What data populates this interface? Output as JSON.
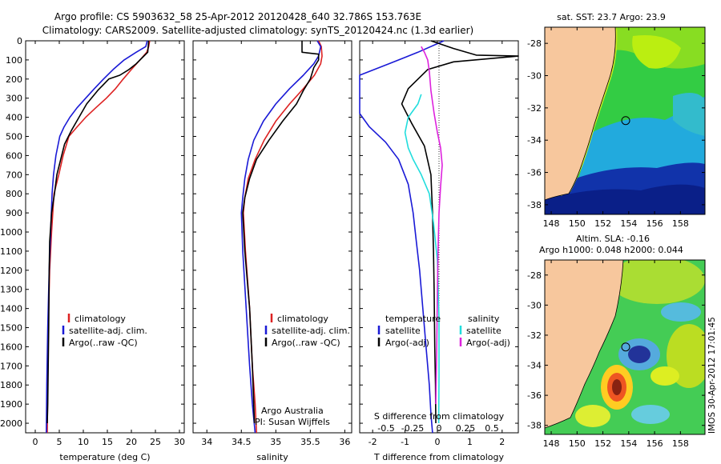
{
  "header": {
    "line1": "Argo profile: CS 5903632_58 25-Apr-2012 20120428_640 32.786S 153.763E",
    "line2": "Climatology: CARS2009. Satellite-adjusted climatology: synTS_20120424.nc (1.3d earlier)"
  },
  "colors": {
    "climatology": "#dd2222",
    "satellite": "#1a1ad6",
    "argo": "#000000",
    "satellite_salinity": "#22dddd",
    "argo_salinity": "#dd22dd",
    "land": "#f7c79d"
  },
  "chart_data": [
    {
      "type": "line",
      "panel": "temperature",
      "xlabel": "temperature (deg C)",
      "ylabel": "",
      "xlim": [
        -2,
        31
      ],
      "ylim": [
        2050,
        0
      ],
      "xticks": [
        "0",
        "5",
        "10",
        "15",
        "20",
        "25",
        "30"
      ],
      "yticks": [
        "0",
        "100",
        "200",
        "300",
        "400",
        "500",
        "600",
        "700",
        "800",
        "900",
        "1000",
        "1100",
        "1200",
        "1300",
        "1400",
        "1500",
        "1600",
        "1700",
        "1800",
        "1900",
        "2000"
      ],
      "legend": {
        "position": "middle",
        "entries": [
          "climatology",
          "satellite-adj. clim.",
          "Argo(..raw -QC)"
        ]
      },
      "series": [
        {
          "name": "climatology",
          "color": "#dd2222",
          "x": [
            23.8,
            23.6,
            23.2,
            21.8,
            20.0,
            18.3,
            16.7,
            14.8,
            12.6,
            10.5,
            8.7,
            7.0,
            5.8,
            4.9,
            3.9,
            3.4,
            3.0,
            2.7,
            2.6,
            2.5
          ],
          "y": [
            0,
            30,
            60,
            100,
            150,
            200,
            250,
            300,
            350,
            400,
            450,
            500,
            600,
            700,
            800,
            1000,
            1200,
            1500,
            1800,
            2050
          ]
        },
        {
          "name": "satellite-adj. clim.",
          "color": "#1a1ad6",
          "x": [
            23.3,
            23.0,
            21.0,
            18.5,
            16.2,
            14.2,
            12.3,
            10.5,
            8.7,
            7.2,
            6.0,
            5.1,
            4.3,
            3.8,
            3.5,
            3.2,
            2.9,
            2.6,
            2.4,
            2.3
          ],
          "y": [
            0,
            30,
            60,
            100,
            150,
            200,
            250,
            300,
            350,
            400,
            450,
            500,
            600,
            700,
            800,
            1000,
            1200,
            1500,
            1800,
            2050
          ]
        },
        {
          "name": "Argo(..raw -QC)",
          "color": "#000000",
          "x": [
            23.6,
            23.5,
            23.4,
            22.2,
            21.0,
            19.5,
            17.6,
            15.3,
            13.0,
            10.7,
            9.1,
            7.5,
            6.1,
            5.3,
            4.5,
            4.0,
            3.4,
            3.0,
            2.9,
            2.8,
            2.7,
            2.6,
            2.5
          ],
          "y": [
            0,
            30,
            60,
            90,
            120,
            150,
            180,
            200,
            260,
            330,
            400,
            470,
            540,
            620,
            700,
            800,
            900,
            1050,
            1200,
            1500,
            1700,
            1900,
            2000
          ]
        }
      ]
    },
    {
      "type": "line",
      "panel": "salinity",
      "xlabel": "salinity",
      "xlim": [
        33.8,
        36.1
      ],
      "ylim": [
        2050,
        0
      ],
      "xticks": [
        "34",
        "34.5",
        "35",
        "35.5",
        "36"
      ],
      "legend": {
        "position": "middle",
        "entries": [
          "climatology",
          "satellite-adj. clim.",
          "Argo(..raw -QC)"
        ]
      },
      "annotation": [
        "Argo Australia",
        "PI: Susan Wijffels"
      ],
      "series": [
        {
          "name": "climatology",
          "color": "#dd2222",
          "x": [
            35.62,
            35.66,
            35.67,
            35.65,
            35.56,
            35.4,
            35.2,
            35.0,
            34.83,
            34.7,
            34.6,
            34.55,
            34.53,
            34.56,
            34.62,
            34.66,
            34.7,
            34.72
          ],
          "y": [
            0,
            30,
            80,
            120,
            180,
            250,
            330,
            420,
            520,
            620,
            720,
            820,
            900,
            1100,
            1400,
            1700,
            1900,
            2050
          ]
        },
        {
          "name": "satellite-adj. clim.",
          "color": "#1a1ad6",
          "x": [
            35.6,
            35.65,
            35.62,
            35.55,
            35.4,
            35.2,
            35.0,
            34.82,
            34.68,
            34.6,
            34.55,
            34.52,
            34.5,
            34.52,
            34.57,
            34.62,
            34.66,
            34.7
          ],
          "y": [
            0,
            30,
            80,
            120,
            180,
            250,
            330,
            420,
            520,
            620,
            720,
            820,
            900,
            1100,
            1400,
            1700,
            1900,
            2050
          ]
        },
        {
          "name": "Argo(..raw -QC)",
          "color": "#000000",
          "x": [
            35.38,
            35.38,
            35.62,
            35.62,
            35.55,
            35.5,
            35.4,
            35.3,
            35.1,
            34.9,
            34.72,
            34.62,
            34.55,
            34.52,
            34.55,
            34.62,
            34.66,
            34.69
          ],
          "y": [
            0,
            60,
            70,
            100,
            140,
            200,
            260,
            330,
            420,
            520,
            620,
            720,
            820,
            900,
            1100,
            1400,
            1700,
            2000
          ]
        }
      ]
    },
    {
      "type": "line",
      "panel": "difference",
      "xlabel": "T difference from climatology",
      "top_axis_label": "S difference from climatology",
      "xlim": [
        -2.4,
        2.5
      ],
      "ylim": [
        2050,
        0
      ],
      "xticks": [
        "-2",
        "-1",
        "0",
        "1",
        "2"
      ],
      "s_ticks": [
        "-0.5",
        "-0.25",
        "0",
        "0.25",
        "0.5"
      ],
      "legend": {
        "position": "middle",
        "groups": [
          "temperature",
          "salinity"
        ],
        "entries": [
          "satellite",
          "Argo(-adj)",
          "satellite",
          "Argo(-adj)"
        ]
      },
      "series": [
        {
          "name": "satellite",
          "group": "temperature",
          "color": "#1a1ad6",
          "x": [
            0.2,
            -0.6,
            -1.5,
            -2.4,
            -2.4,
            -2.1,
            -1.6,
            -1.2,
            -0.9,
            -0.75,
            -0.65,
            -0.55,
            -0.45,
            -0.35,
            -0.25,
            -0.2,
            -0.15
          ],
          "y": [
            0,
            60,
            120,
            180,
            380,
            450,
            530,
            620,
            750,
            900,
            1050,
            1200,
            1400,
            1600,
            1800,
            1950,
            2050
          ]
        },
        {
          "name": "Argo(-adj)",
          "group": "temperature",
          "color": "#000000",
          "x": [
            -0.2,
            0.5,
            1.2,
            2.5,
            1.5,
            0.5,
            -0.3,
            -0.9,
            -1.1,
            -0.8,
            -0.4,
            -0.2,
            -0.15,
            -0.12,
            -0.1,
            -0.08,
            -0.06,
            -0.05
          ],
          "y": [
            0,
            40,
            75,
            80,
            95,
            110,
            150,
            250,
            330,
            430,
            550,
            700,
            900,
            1100,
            1300,
            1600,
            1800,
            2000
          ]
        },
        {
          "name": "satellite",
          "group": "salinity",
          "color": "#22dddd",
          "x": [
            -0.5,
            -0.6,
            -0.9,
            -1.0,
            -0.9,
            -0.75,
            -0.5,
            -0.25,
            -0.12,
            0.0,
            0.05,
            0.05,
            0.04
          ],
          "y": [
            280,
            330,
            400,
            480,
            560,
            620,
            700,
            800,
            950,
            1150,
            1450,
            1750,
            2000
          ]
        },
        {
          "name": "Argo(-adj)",
          "group": "salinity",
          "color": "#dd22dd",
          "x": [
            -0.5,
            -0.4,
            -0.3,
            -0.25,
            -0.2,
            -0.1,
            0.0,
            0.1,
            0.15,
            0.1,
            0.05,
            0.02,
            0.0,
            -0.02,
            -0.05
          ],
          "y": [
            30,
            60,
            100,
            160,
            260,
            380,
            480,
            560,
            650,
            760,
            900,
            1100,
            1300,
            1600,
            1900
          ]
        }
      ]
    }
  ],
  "maps": {
    "sst": {
      "title": "sat. SST: 23.7 Argo: 23.9",
      "yticks": [
        "-28",
        "-30",
        "-32",
        "-34",
        "-36",
        "-38"
      ],
      "xticks": [
        "148",
        "150",
        "152",
        "154",
        "156",
        "158"
      ]
    },
    "sla": {
      "title1": "Altim. SLA: -0.16",
      "title2": "Argo h1000: 0.048 h2000: 0.044",
      "yticks": [
        "-28",
        "-30",
        "-32",
        "-34",
        "-36",
        "-38"
      ],
      "xticks": [
        "148",
        "150",
        "152",
        "154",
        "156",
        "158"
      ]
    },
    "float_position": {
      "lon": 153.763,
      "lat": -32.786
    }
  },
  "footer_stamp": "IMOS 30-Apr-2012 17:01:45"
}
